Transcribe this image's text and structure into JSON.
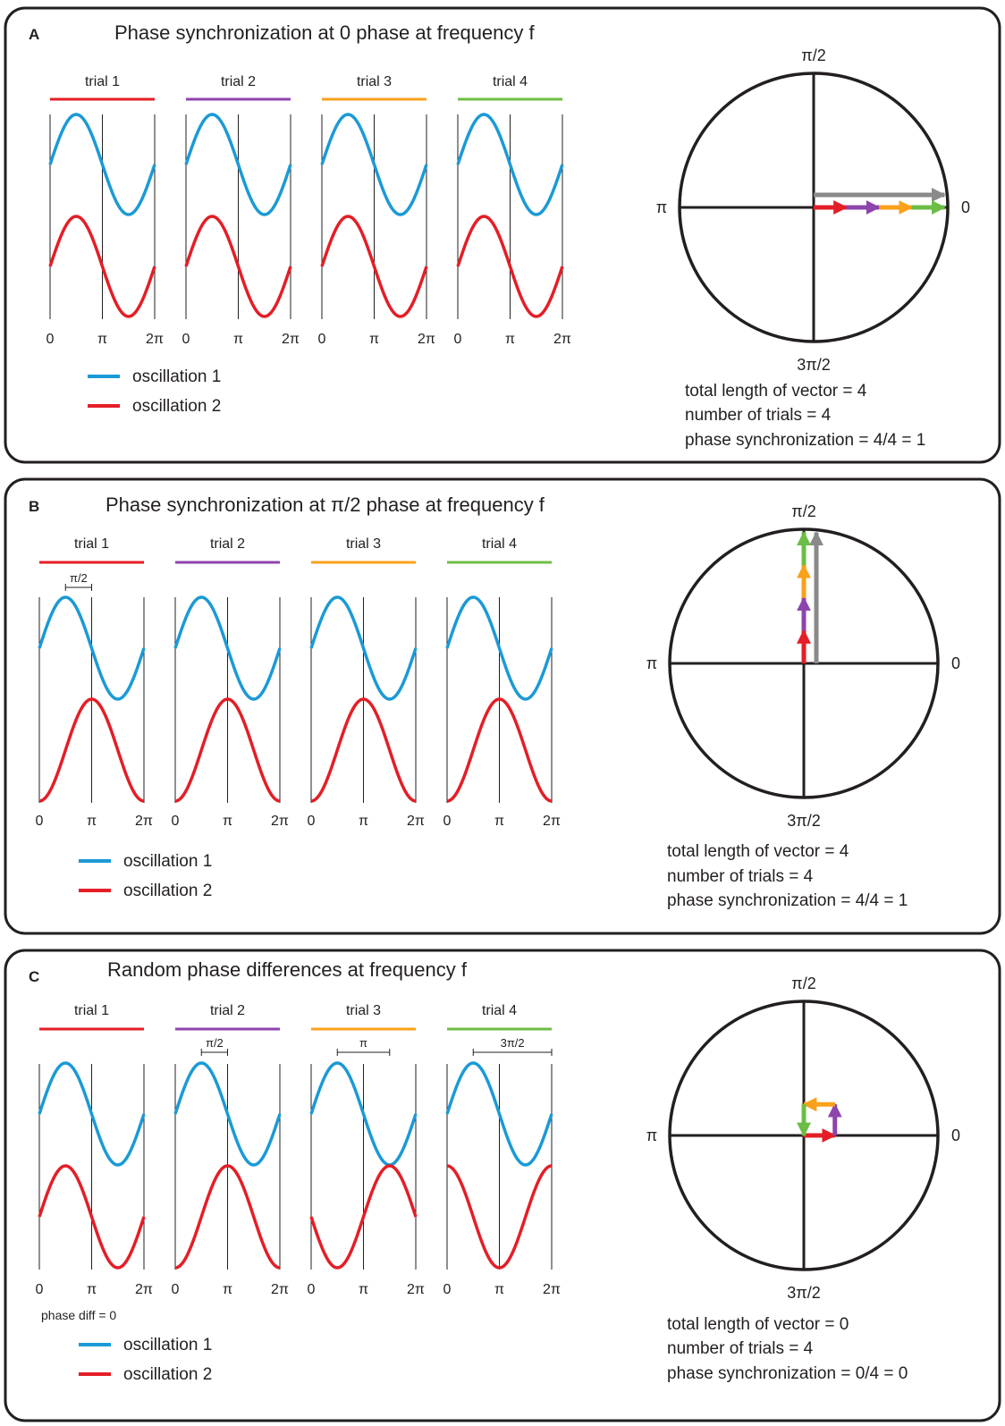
{
  "colors": {
    "frame": "#231f20",
    "oscillation_1": "#1b9ad6",
    "oscillation_2": "#e41e26",
    "trial_1": "#e41e26",
    "trial_2": "#8e44ad",
    "trial_3": "#f9a11b",
    "trial_4": "#6cbd45",
    "resultant": "#8a8a8a",
    "gridline": "#231f20"
  },
  "panels": [
    {
      "letter": "A",
      "title": "Phase synchronization at 0 phase at frequency f",
      "trials": [
        {
          "label": "trial 1",
          "color_key": "trial_1",
          "osc1_shift": 0,
          "osc2_shift": 0
        },
        {
          "label": "trial 2",
          "color_key": "trial_2",
          "osc1_shift": 0,
          "osc2_shift": 0
        },
        {
          "label": "trial 3",
          "color_key": "trial_3",
          "osc1_shift": 0,
          "osc2_shift": 0
        },
        {
          "label": "trial 4",
          "color_key": "trial_4",
          "osc1_shift": 0,
          "osc2_shift": 0
        }
      ],
      "x_ticks": [
        "0",
        "π",
        "2π"
      ],
      "legend": [
        {
          "label": "oscillation 1",
          "color_key": "oscillation_1"
        },
        {
          "label": "oscillation 2",
          "color_key": "oscillation_2"
        }
      ],
      "polar": {
        "labels": {
          "top": "π/2",
          "left": "π",
          "right": "0",
          "bottom": "3π/2"
        },
        "vectors": [
          {
            "color_key": "trial_1",
            "angle_deg": 0,
            "length": 1
          },
          {
            "color_key": "trial_2",
            "angle_deg": 0,
            "length": 1
          },
          {
            "color_key": "trial_3",
            "angle_deg": 0,
            "length": 1
          },
          {
            "color_key": "trial_4",
            "angle_deg": 0,
            "length": 1
          }
        ],
        "resultant": {
          "angle_deg": 0,
          "length": 4
        }
      },
      "stats": [
        "total length of vector = 4",
        "number of trials = 4",
        "phase synchronization = 4/4 = 1"
      ]
    },
    {
      "letter": "B",
      "title": "Phase synchronization at π/2 phase at frequency f",
      "trials": [
        {
          "label": "trial 1",
          "color_key": "trial_1",
          "osc1_shift": 0,
          "osc2_shift": 0.5,
          "bracket": "π/2"
        },
        {
          "label": "trial 2",
          "color_key": "trial_2",
          "osc1_shift": 0,
          "osc2_shift": 0.5
        },
        {
          "label": "trial 3",
          "color_key": "trial_3",
          "osc1_shift": 0,
          "osc2_shift": 0.5
        },
        {
          "label": "trial 4",
          "color_key": "trial_4",
          "osc1_shift": 0,
          "osc2_shift": 0.5
        }
      ],
      "x_ticks": [
        "0",
        "π",
        "2π"
      ],
      "legend": [
        {
          "label": "oscillation 1",
          "color_key": "oscillation_1"
        },
        {
          "label": "oscillation 2",
          "color_key": "oscillation_2"
        }
      ],
      "polar": {
        "labels": {
          "top": "π/2",
          "left": "π",
          "right": "0",
          "bottom": "3π/2"
        },
        "vectors": [
          {
            "color_key": "trial_1",
            "angle_deg": 90,
            "length": 1
          },
          {
            "color_key": "trial_2",
            "angle_deg": 90,
            "length": 1
          },
          {
            "color_key": "trial_3",
            "angle_deg": 90,
            "length": 1
          },
          {
            "color_key": "trial_4",
            "angle_deg": 90,
            "length": 1
          }
        ],
        "resultant": {
          "angle_deg": 90,
          "length": 4
        }
      },
      "stats": [
        "total length of vector = 4",
        "number of trials = 4",
        "phase synchronization = 4/4 = 1"
      ]
    },
    {
      "letter": "C",
      "title": "Random phase differences at frequency f",
      "trials": [
        {
          "label": "trial 1",
          "color_key": "trial_1",
          "osc1_shift": 0,
          "osc2_shift": 0
        },
        {
          "label": "trial 2",
          "color_key": "trial_2",
          "osc1_shift": 0,
          "osc2_shift": 0.5,
          "bracket": "π/2"
        },
        {
          "label": "trial 3",
          "color_key": "trial_3",
          "osc1_shift": 0,
          "osc2_shift": 1,
          "bracket": "π"
        },
        {
          "label": "trial 4",
          "color_key": "trial_4",
          "osc1_shift": 0,
          "osc2_shift": 1.5,
          "bracket": "3π/2"
        }
      ],
      "x_ticks": [
        "0",
        "π",
        "2π"
      ],
      "note": "phase diff = 0",
      "legend": [
        {
          "label": "oscillation 1",
          "color_key": "oscillation_1"
        },
        {
          "label": "oscillation 2",
          "color_key": "oscillation_2"
        }
      ],
      "polar": {
        "labels": {
          "top": "π/2",
          "left": "π",
          "right": "0",
          "bottom": "3π/2"
        },
        "vectors": [
          {
            "color_key": "trial_1",
            "angle_deg": 0,
            "length": 1
          },
          {
            "color_key": "trial_2",
            "angle_deg": 90,
            "length": 1
          },
          {
            "color_key": "trial_3",
            "angle_deg": 180,
            "length": 1
          },
          {
            "color_key": "trial_4",
            "angle_deg": 270,
            "length": 1
          }
        ],
        "resultant": null
      },
      "stats": [
        "total length of vector = 0",
        "number of trials = 4",
        "phase synchronization = 0/4 = 0"
      ]
    }
  ]
}
